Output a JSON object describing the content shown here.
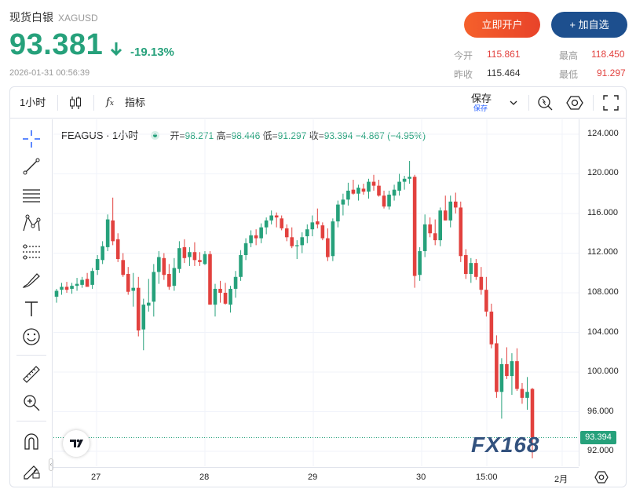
{
  "header": {
    "title": "现货白银",
    "symbol": "XAGUSD",
    "price": "93.381",
    "change": "-19.13%",
    "timestamp": "2026-01-31 00:56:39",
    "buttons": {
      "open_account": "立即开户",
      "add_watch": "+ 加自选"
    },
    "stats": {
      "open_label": "今开",
      "open_value": "115.861",
      "high_label": "最高",
      "high_value": "118.450",
      "prev_label": "昨收",
      "prev_value": "115.464",
      "low_label": "最低",
      "low_value": "91.297"
    }
  },
  "toolbar": {
    "interval": "1小时",
    "indicators": "指标",
    "save": "保存",
    "save_sub": "保存"
  },
  "legend": {
    "symbol": "FEAGUS · 1小时",
    "open_label": "开=",
    "open": "98.271",
    "high_label": "高=",
    "high": "98.446",
    "low_label": "低=",
    "low": "91.297",
    "close_label": "收=",
    "close": "93.394",
    "change": "−4.867 (−4.95%)"
  },
  "last_price_tag": "93.394",
  "watermark": "FX168",
  "colors": {
    "up": "#26a17b",
    "down": "#e2413e",
    "brand_blue": "#1d4f8e",
    "brand_orange": "#f5602b"
  },
  "chart_data": {
    "type": "candlestick",
    "y_ticks": [
      "124.000",
      "120.000",
      "116.000",
      "112.000",
      "108.000",
      "104.000",
      "100.000",
      "96.000",
      "92.000"
    ],
    "x_ticks": [
      "27",
      "28",
      "29",
      "30",
      "15:00",
      "2月"
    ],
    "ylim": [
      90.5,
      125.5
    ],
    "candles": [
      [
        107.6,
        108.4,
        107.0,
        108.2
      ],
      [
        108.3,
        109.0,
        107.8,
        108.6
      ],
      [
        108.6,
        109.1,
        108.0,
        108.3
      ],
      [
        108.4,
        109.0,
        107.9,
        108.7
      ],
      [
        108.7,
        109.5,
        108.2,
        108.9
      ],
      [
        108.8,
        109.6,
        108.5,
        109.3
      ],
      [
        109.4,
        110.0,
        108.6,
        108.6
      ],
      [
        108.8,
        110.5,
        108.4,
        110.2
      ],
      [
        110.3,
        111.8,
        109.8,
        111.4
      ],
      [
        111.3,
        113.2,
        110.9,
        112.7
      ],
      [
        112.6,
        115.9,
        112.2,
        115.4
      ],
      [
        115.3,
        117.6,
        112.8,
        113.2
      ],
      [
        113.4,
        114.0,
        111.1,
        111.4
      ],
      [
        111.3,
        112.0,
        109.6,
        109.8
      ],
      [
        109.9,
        110.6,
        107.8,
        108.1
      ],
      [
        108.2,
        110.0,
        106.6,
        108.5
      ],
      [
        108.5,
        109.6,
        103.6,
        104.2
      ],
      [
        104.3,
        107.4,
        102.2,
        106.8
      ],
      [
        106.7,
        109.4,
        106.1,
        107.0
      ],
      [
        107.1,
        110.9,
        105.6,
        110.1
      ],
      [
        110.1,
        112.2,
        108.9,
        111.6
      ],
      [
        111.5,
        112.0,
        109.3,
        109.8
      ],
      [
        109.9,
        110.9,
        108.3,
        108.6
      ],
      [
        108.7,
        111.5,
        108.2,
        110.5
      ],
      [
        110.4,
        113.2,
        110.0,
        112.5
      ],
      [
        112.6,
        113.4,
        111.0,
        111.5
      ],
      [
        111.6,
        112.6,
        110.7,
        112.1
      ],
      [
        112.1,
        113.1,
        110.7,
        111.3
      ],
      [
        111.3,
        112.1,
        110.7,
        111.1
      ],
      [
        110.9,
        112.2,
        110.8,
        111.9
      ],
      [
        111.9,
        112.2,
        106.8,
        106.8
      ],
      [
        106.8,
        108.9,
        105.6,
        108.4
      ],
      [
        108.4,
        109.2,
        107.0,
        108.0
      ],
      [
        108.0,
        109.0,
        106.8,
        106.9
      ],
      [
        106.8,
        108.7,
        106.0,
        108.4
      ],
      [
        108.4,
        110.2,
        107.5,
        109.6
      ],
      [
        109.6,
        112.3,
        109.2,
        111.8
      ],
      [
        111.8,
        113.5,
        111.3,
        113.0
      ],
      [
        113.0,
        114.3,
        112.6,
        113.8
      ],
      [
        113.8,
        114.4,
        112.8,
        113.5
      ],
      [
        113.5,
        115.0,
        113.0,
        114.6
      ],
      [
        114.6,
        115.6,
        113.9,
        115.3
      ],
      [
        115.3,
        116.3,
        114.9,
        115.8
      ],
      [
        115.8,
        116.1,
        114.6,
        115.6
      ],
      [
        115.5,
        115.8,
        114.3,
        114.5
      ],
      [
        114.5,
        114.9,
        113.2,
        113.6
      ],
      [
        113.6,
        114.6,
        112.5,
        112.7
      ],
      [
        112.7,
        113.3,
        111.4,
        112.8
      ],
      [
        112.8,
        114.1,
        112.0,
        113.6
      ],
      [
        113.7,
        114.9,
        113.0,
        114.4
      ],
      [
        114.4,
        115.8,
        113.7,
        115.1
      ],
      [
        115.2,
        116.5,
        114.5,
        114.9
      ],
      [
        114.8,
        115.1,
        113.3,
        113.5
      ],
      [
        113.5,
        114.5,
        111.2,
        111.6
      ],
      [
        111.7,
        115.5,
        111.2,
        115.2
      ],
      [
        115.2,
        117.3,
        114.6,
        116.9
      ],
      [
        116.9,
        118.0,
        115.8,
        117.4
      ],
      [
        117.4,
        119.1,
        116.8,
        118.3
      ],
      [
        118.4,
        119.4,
        117.9,
        118.0
      ],
      [
        118.0,
        118.9,
        117.3,
        118.6
      ],
      [
        118.5,
        119.0,
        117.9,
        118.2
      ],
      [
        118.2,
        119.5,
        117.5,
        119.2
      ],
      [
        119.2,
        119.9,
        118.3,
        118.8
      ],
      [
        118.8,
        119.4,
        117.7,
        117.8
      ],
      [
        117.8,
        118.3,
        116.5,
        116.7
      ],
      [
        116.7,
        118.3,
        116.4,
        117.9
      ],
      [
        117.8,
        118.9,
        117.3,
        118.4
      ],
      [
        118.3,
        120.0,
        117.8,
        119.2
      ],
      [
        119.2,
        119.8,
        118.4,
        119.5
      ],
      [
        119.5,
        121.3,
        119.0,
        119.7
      ],
      [
        119.7,
        119.9,
        108.5,
        109.7
      ],
      [
        109.8,
        112.6,
        109.2,
        112.2
      ],
      [
        112.2,
        115.9,
        111.6,
        114.9
      ],
      [
        114.9,
        115.6,
        113.6,
        114.0
      ],
      [
        114.0,
        115.4,
        112.8,
        113.3
      ],
      [
        113.3,
        116.6,
        112.7,
        116.3
      ],
      [
        116.3,
        117.8,
        115.3,
        115.3
      ],
      [
        115.3,
        117.8,
        114.6,
        117.2
      ],
      [
        117.2,
        118.1,
        116.0,
        116.6
      ],
      [
        116.6,
        117.2,
        111.1,
        111.7
      ],
      [
        111.8,
        112.4,
        109.4,
        109.9
      ],
      [
        109.9,
        111.5,
        109.0,
        111.0
      ],
      [
        111.0,
        111.4,
        109.3,
        109.6
      ],
      [
        109.6,
        110.6,
        107.8,
        108.3
      ],
      [
        108.3,
        109.6,
        105.6,
        106.1
      ],
      [
        106.1,
        106.9,
        102.4,
        102.8
      ],
      [
        102.9,
        103.7,
        97.4,
        98.0
      ],
      [
        98.0,
        101.4,
        95.3,
        100.8
      ],
      [
        100.8,
        102.5,
        99.3,
        99.6
      ],
      [
        99.6,
        101.9,
        97.7,
        101.1
      ],
      [
        101.1,
        102.4,
        98.1,
        98.3
      ],
      [
        98.3,
        98.9,
        96.8,
        97.4
      ],
      [
        97.4,
        99.5,
        96.2,
        98.0
      ],
      [
        98.3,
        98.4,
        91.3,
        93.4
      ]
    ]
  }
}
